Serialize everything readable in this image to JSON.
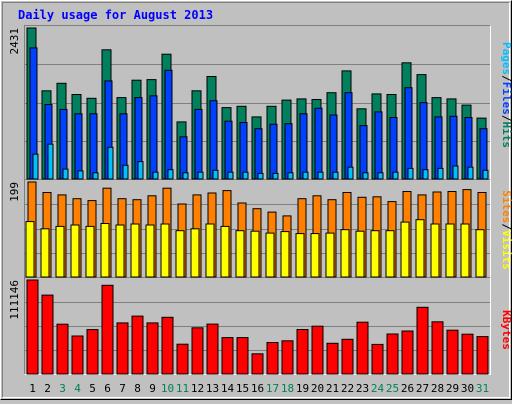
{
  "title": "Daily usage for August 2013",
  "colors": {
    "background": "#c0c0c0",
    "title": "#0000ff",
    "hits": "#00805c",
    "files": "#0040ff",
    "pages": "#00c0ff",
    "visits": "#ffff00",
    "sites": "#ff8000",
    "kbytes": "#ff0000",
    "weekend_label": "#00805c",
    "weekday_label": "#000000"
  },
  "legend": {
    "top": {
      "pages": "Pages",
      "files": "Files",
      "hits": "Hits",
      "sep": "/"
    },
    "middle": {
      "sites": "Sites",
      "visits": "Visits",
      "sep": "/"
    },
    "bottom": {
      "kbytes": "KBytes"
    }
  },
  "chart_data": {
    "type": "bar",
    "categories": [
      "1",
      "2",
      "3",
      "4",
      "5",
      "6",
      "7",
      "8",
      "9",
      "10",
      "11",
      "12",
      "13",
      "14",
      "15",
      "16",
      "17",
      "18",
      "19",
      "20",
      "21",
      "22",
      "23",
      "24",
      "25",
      "26",
      "27",
      "28",
      "29",
      "30",
      "31"
    ],
    "weekend_days": [
      3,
      4,
      10,
      11,
      17,
      18,
      24,
      25,
      31
    ],
    "panels": [
      {
        "id": "hits-files-pages",
        "max_label": "2431",
        "ylim": [
          0,
          2431
        ],
        "series": [
          {
            "name": "Hits",
            "values": [
              2431,
              1420,
              1540,
              1360,
              1300,
              2080,
              1310,
              1590,
              1600,
              2010,
              920,
              1420,
              1650,
              1150,
              1170,
              1000,
              1170,
              1270,
              1290,
              1280,
              1390,
              1740,
              1130,
              1370,
              1360,
              1870,
              1680,
              1310,
              1290,
              1190,
              980
            ]
          },
          {
            "name": "Files",
            "values": [
              2110,
              1200,
              1120,
              1050,
              1050,
              1580,
              1050,
              1310,
              1340,
              1750,
              680,
              1120,
              1260,
              930,
              910,
              810,
              880,
              890,
              1050,
              1140,
              1030,
              1390,
              860,
              1080,
              990,
              1470,
              1230,
              1000,
              1010,
              990,
              810
            ]
          },
          {
            "name": "Pages",
            "values": [
              400,
              560,
              160,
              130,
              100,
              510,
              220,
              280,
              110,
              150,
              100,
              110,
              140,
              110,
              110,
              90,
              90,
              100,
              110,
              110,
              110,
              190,
              100,
              100,
              110,
              170,
              150,
              170,
              210,
              190,
              140
            ]
          }
        ]
      },
      {
        "id": "visits-sites",
        "max_label": "199",
        "ylim": [
          0,
          199
        ],
        "series": [
          {
            "name": "Sites",
            "values": [
              199,
              177,
              172,
              164,
              160,
              186,
              164,
              162,
              170,
              186,
              153,
              172,
              176,
              181,
              155,
              143,
              136,
              128,
              164,
              170,
              162,
              177,
              167,
              168,
              158,
              179,
              172,
              178,
              179,
              183,
              177
            ]
          },
          {
            "name": "Visits",
            "values": [
              116,
              101,
              106,
              109,
              106,
              112,
              109,
              111,
              109,
              111,
              97,
              101,
              111,
              106,
              97,
              96,
              92,
              95,
              91,
              91,
              92,
              99,
              96,
              97,
              97,
              115,
              120,
              111,
              111,
              111,
              99
            ]
          }
        ]
      },
      {
        "id": "kbytes",
        "max_label": "111146",
        "ylim": [
          0,
          111146
        ],
        "series": [
          {
            "name": "KBytes",
            "values": [
              111146,
              93300,
              58900,
              44900,
              52500,
              104900,
              60400,
              68500,
              60400,
              67000,
              35200,
              54600,
              59000,
              43000,
              43000,
              23900,
              37200,
              39200,
              52600,
              56500,
              36300,
              41000,
              61300,
              35000,
              47300,
              50900,
              78900,
              61700,
              51800,
              47100,
              44200
            ]
          }
        ]
      }
    ]
  }
}
